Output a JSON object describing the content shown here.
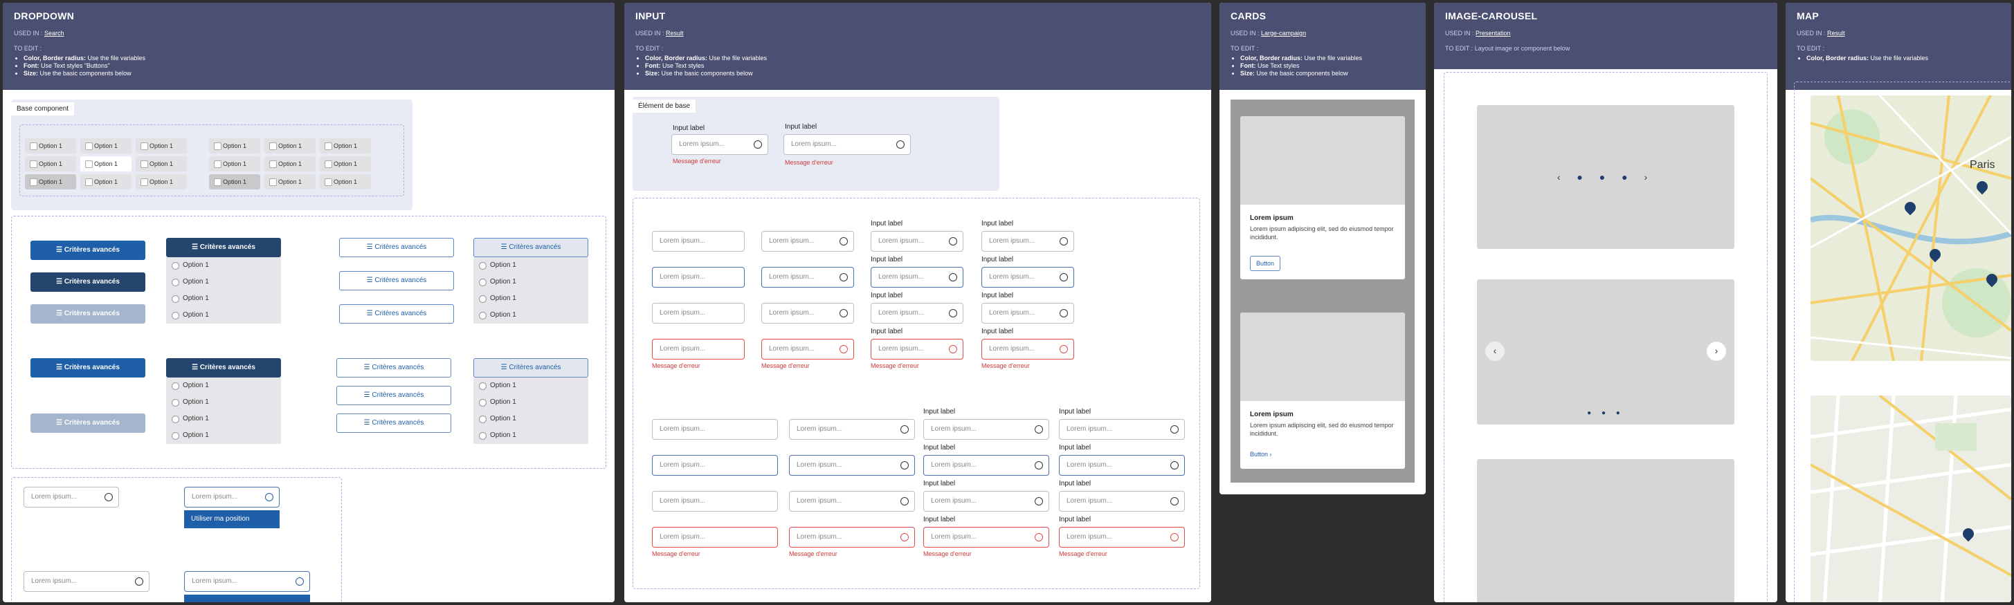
{
  "dropdown": {
    "title": "DROPDOWN",
    "usedin_prefix": "USED IN :",
    "usedin_link": "Search",
    "todo": "TO EDIT :",
    "bullets": [
      {
        "b": "Color, Border radius:",
        "t": " Use the file variables"
      },
      {
        "b": "Font:",
        "t": " Use Text styles \"Buttons\""
      },
      {
        "b": "Size:",
        "t": " Use the basic components below"
      }
    ],
    "tab": "Base component",
    "option": "Option 1",
    "criteria": "Critères avancés",
    "placeholder": "Lorem ipsum...",
    "use_position": "Utiliser ma position"
  },
  "input": {
    "title": "INPUT",
    "usedin_prefix": "USED IN :",
    "usedin_link": "Result",
    "todo": "TO EDIT :",
    "bullets": [
      {
        "b": "Color, Border radius:",
        "t": " Use the file variables"
      },
      {
        "b": "Font:",
        "t": " Use Text styles"
      },
      {
        "b": "Size:",
        "t": " Use the basic components below"
      }
    ],
    "base_tab": "Élément de base",
    "label": "Input label",
    "placeholder": "Lorem ipsum...",
    "error": "Message d'erreur"
  },
  "cards": {
    "title": "CARDS",
    "usedin_prefix": "USED IN :",
    "usedin_link": "Large-campaign",
    "todo": "TO EDIT :",
    "bullets": [
      {
        "b": "Color, Border radius:",
        "t": " Use the file variables"
      },
      {
        "b": "Font:",
        "t": " Use Text styles"
      },
      {
        "b": "Size:",
        "t": " Use the basic components below"
      }
    ],
    "card_title": "Lorem ipsum",
    "card_text": "Lorem ipsum adipiscing elit, sed do eiusmod tempor incididunt.",
    "button": "Button",
    "link": "Button"
  },
  "carousel": {
    "title": "IMAGE-CAROUSEL",
    "usedin_prefix": "USED IN :",
    "usedin_link": "Presentation",
    "todo": "TO EDIT :",
    "todo_text": "Layout image or component below"
  },
  "map": {
    "title": "MAP",
    "usedin_prefix": "USED IN :",
    "usedin_link": "Result",
    "todo": "TO EDIT :",
    "bullets": [
      {
        "b": "Color, Border radius:",
        "t": " Use the file variables"
      }
    ],
    "city": "Paris"
  },
  "colors": {
    "header": "#4b4f72",
    "primary": "#1f5ea8",
    "dark": "#24456e",
    "error": "#e04b4b"
  }
}
